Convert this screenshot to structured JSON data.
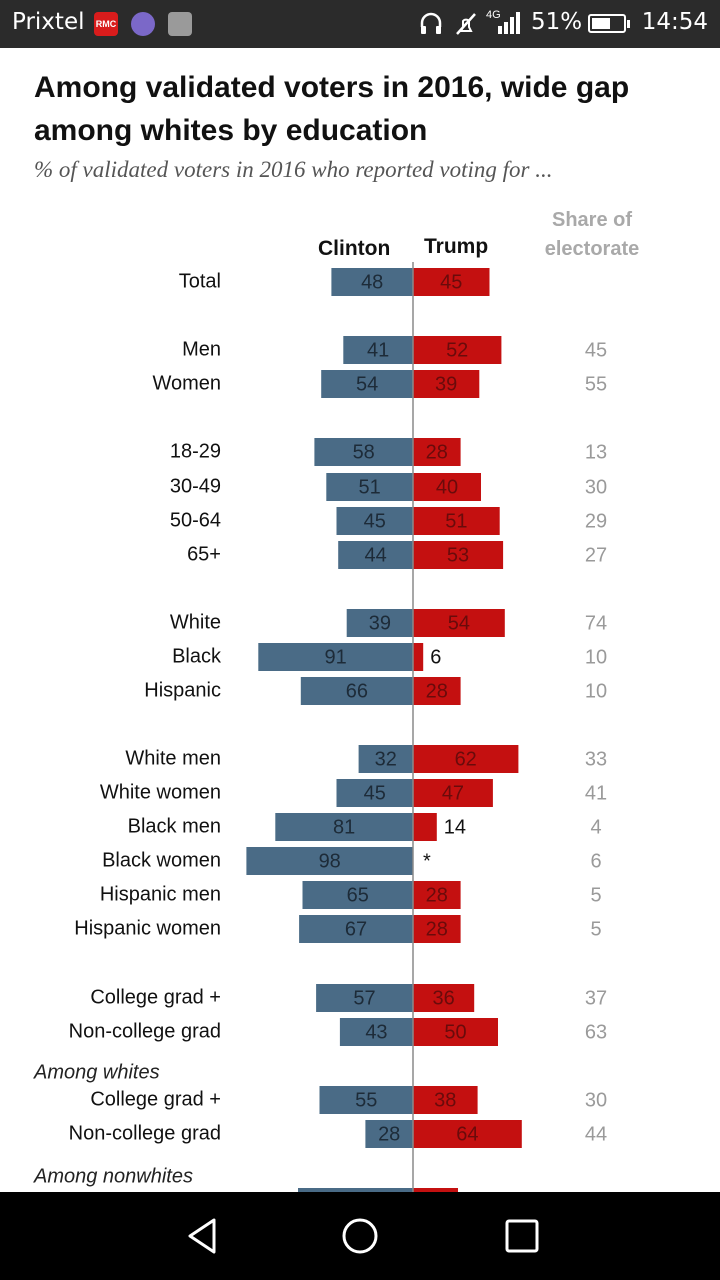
{
  "status_bar": {
    "app_name": "Prixtel",
    "notification_icons": [
      "rmc-icon",
      "chat-icon",
      "image-icon"
    ],
    "network": "4G",
    "battery": "51%",
    "time": "14:54"
  },
  "chart_data": {
    "type": "bar",
    "title": "Among validated voters in 2016, wide gap among whites by education",
    "subtitle": "% of validated voters in 2016 who reported voting for ...",
    "series": [
      {
        "name": "Clinton",
        "color": "#4a6b86"
      },
      {
        "name": "Trump",
        "color": "#c41010"
      }
    ],
    "share_label": "Share of electorate",
    "rows": [
      {
        "label": "Total",
        "clinton": 48,
        "trump": 45,
        "share": ""
      },
      {
        "label": "Men",
        "clinton": 41,
        "trump": 52,
        "share": "45"
      },
      {
        "label": "Women",
        "clinton": 54,
        "trump": 39,
        "share": "55"
      },
      {
        "label": "18-29",
        "clinton": 58,
        "trump": 28,
        "share": "13"
      },
      {
        "label": "30-49",
        "clinton": 51,
        "trump": 40,
        "share": "30"
      },
      {
        "label": "50-64",
        "clinton": 45,
        "trump": 51,
        "share": "29"
      },
      {
        "label": "65+",
        "clinton": 44,
        "trump": 53,
        "share": "27"
      },
      {
        "label": "White",
        "clinton": 39,
        "trump": 54,
        "share": "74"
      },
      {
        "label": "Black",
        "clinton": 91,
        "trump": 6,
        "share": "10"
      },
      {
        "label": "Hispanic",
        "clinton": 66,
        "trump": 28,
        "share": "10"
      },
      {
        "label": "White men",
        "clinton": 32,
        "trump": 62,
        "share": "33"
      },
      {
        "label": "White women",
        "clinton": 45,
        "trump": 47,
        "share": "41"
      },
      {
        "label": "Black men",
        "clinton": 81,
        "trump": 14,
        "share": "4"
      },
      {
        "label": "Black women",
        "clinton": 98,
        "trump": null,
        "trump_label": "*",
        "share": "6"
      },
      {
        "label": "Hispanic men",
        "clinton": 65,
        "trump": 28,
        "share": "5"
      },
      {
        "label": "Hispanic women",
        "clinton": 67,
        "trump": 28,
        "share": "5"
      },
      {
        "label": "College grad +",
        "clinton": 57,
        "trump": 36,
        "share": "37"
      },
      {
        "label": "Non-college grad",
        "clinton": 43,
        "trump": 50,
        "share": "63"
      },
      {
        "section": "Among whites"
      },
      {
        "label": "College grad +",
        "clinton": 55,
        "trump": 38,
        "share": "30"
      },
      {
        "label": "Non-college grad",
        "clinton": 28,
        "trump": 64,
        "share": "44"
      },
      {
        "section": "Among nonwhites"
      }
    ]
  },
  "nav_bar": {
    "buttons": [
      "back-icon",
      "home-icon",
      "recents-icon"
    ]
  }
}
